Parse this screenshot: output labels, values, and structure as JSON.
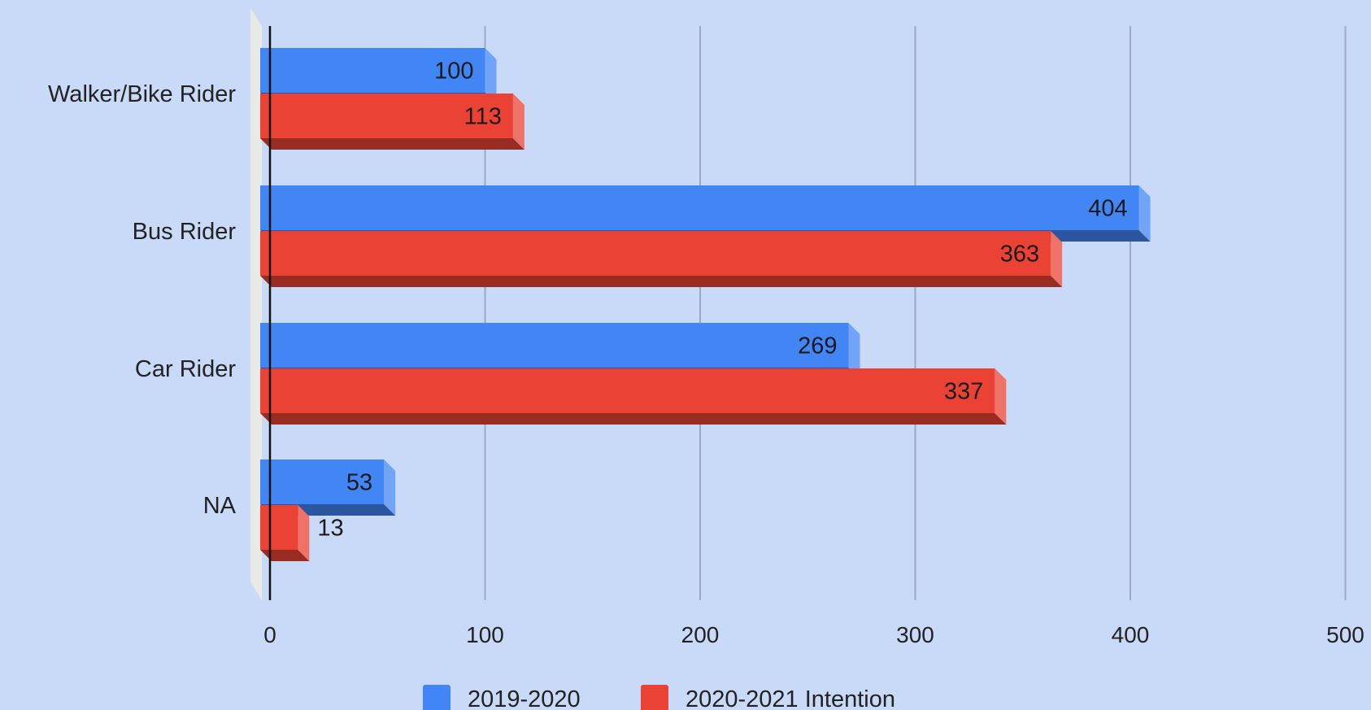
{
  "chart_data": {
    "type": "bar",
    "orientation": "horizontal",
    "style": "3d",
    "categories": [
      "Walker/Bike Rider",
      "Bus Rider",
      "Car Rider",
      "NA"
    ],
    "series": [
      {
        "name": "2019-2020",
        "values": [
          100,
          404,
          269,
          53
        ],
        "color": "#4285f4"
      },
      {
        "name": "2020-2021 Intention",
        "values": [
          113,
          363,
          337,
          13
        ],
        "color": "#ea4335"
      }
    ],
    "xlim": [
      0,
      500
    ],
    "xticks": [
      0,
      100,
      200,
      300,
      400,
      500
    ],
    "grid": true,
    "legend": "bottom",
    "title": "",
    "xlabel": "",
    "ylabel": ""
  },
  "colors": {
    "background": "#c9daf8",
    "gridline": "#9aa8c4",
    "axis": "#111111",
    "floor": "#e9e9e6"
  }
}
